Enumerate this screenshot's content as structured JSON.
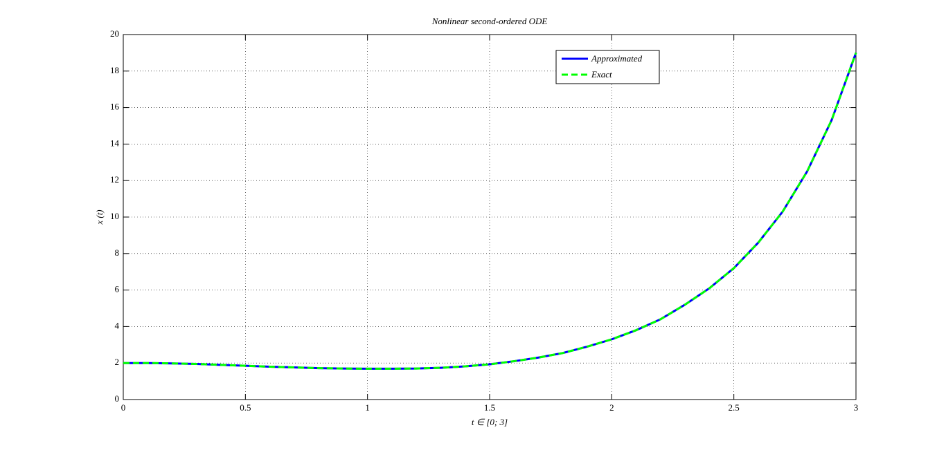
{
  "chart_data": {
    "type": "line",
    "title": "Nonlinear second-ordered ODE",
    "x_label": "t ∈ [0; 3]",
    "y_label": "x (t)",
    "x": [
      0,
      0.1,
      0.2,
      0.3,
      0.4,
      0.5,
      0.6,
      0.7,
      0.8,
      0.9,
      1.0,
      1.1,
      1.2,
      1.3,
      1.4,
      1.5,
      1.6,
      1.7,
      1.8,
      1.9,
      2.0,
      2.1,
      2.2,
      2.3,
      2.4,
      2.5,
      2.6,
      2.7,
      2.8,
      2.9,
      3.0
    ],
    "series": [
      {
        "name": "Approximated",
        "color": "#0000ff",
        "dash": false,
        "values": [
          2.0,
          2.0,
          1.98,
          1.95,
          1.9,
          1.85,
          1.8,
          1.76,
          1.72,
          1.7,
          1.69,
          1.69,
          1.7,
          1.74,
          1.82,
          1.93,
          2.1,
          2.3,
          2.55,
          2.9,
          3.3,
          3.8,
          4.4,
          5.2,
          6.1,
          7.2,
          8.6,
          10.3,
          12.5,
          15.3,
          19.0
        ]
      },
      {
        "name": "Exact",
        "color": "#00ff00",
        "dash": true,
        "values": [
          2.0,
          2.0,
          1.98,
          1.95,
          1.9,
          1.85,
          1.8,
          1.76,
          1.72,
          1.7,
          1.69,
          1.69,
          1.7,
          1.74,
          1.82,
          1.93,
          2.1,
          2.3,
          2.55,
          2.9,
          3.3,
          3.8,
          4.4,
          5.2,
          6.1,
          7.2,
          8.6,
          10.3,
          12.5,
          15.3,
          19.0
        ]
      }
    ],
    "xlim": [
      0,
      3
    ],
    "xticks": [
      0,
      0.5,
      1,
      1.5,
      2,
      2.5,
      3
    ],
    "ylim": [
      0,
      20
    ],
    "yticks": [
      0,
      2,
      4,
      6,
      8,
      10,
      12,
      14,
      16,
      18,
      20
    ],
    "grid": true
  }
}
